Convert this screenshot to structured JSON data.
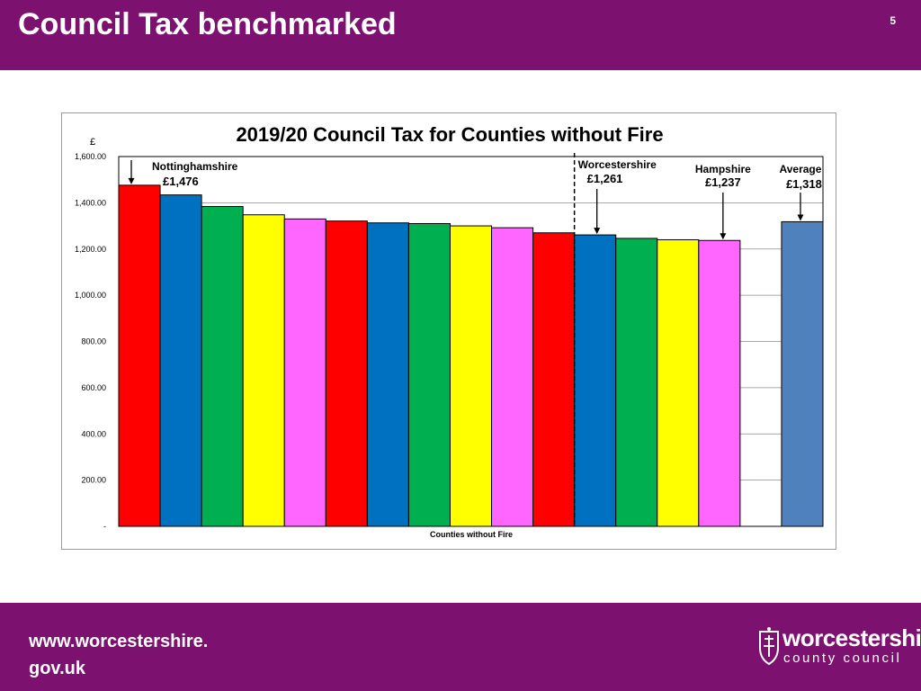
{
  "header": {
    "title": "Council Tax benchmarked",
    "slide_number": "5"
  },
  "footer": {
    "url_line1": "www.worcestershire.",
    "url_line2": "gov.uk",
    "logo_line1": "worcestershire",
    "logo_line2": "county council"
  },
  "colors": {
    "brand_purple": "#7d1170",
    "average_bar": "#4f81bd"
  },
  "chart_data": {
    "type": "bar",
    "title": "2019/20 Council Tax for Counties without Fire",
    "ylabel": "£",
    "xlabel": "Counties without Fire",
    "ylim": [
      0,
      1600
    ],
    "yticks": [
      {
        "value": 0,
        "label": "-"
      },
      {
        "value": 200,
        "label": "200.00"
      },
      {
        "value": 400,
        "label": "400.00"
      },
      {
        "value": 600,
        "label": "600.00"
      },
      {
        "value": 800,
        "label": "800.00"
      },
      {
        "value": 1000,
        "label": "1,000.00"
      },
      {
        "value": 1200,
        "label": "1,200.00"
      },
      {
        "value": 1400,
        "label": "1,400.00"
      },
      {
        "value": 1600,
        "label": "1,600.00"
      }
    ],
    "grid": true,
    "values": [
      1476,
      1434,
      1384,
      1348,
      1330,
      1321,
      1313,
      1310,
      1300,
      1292,
      1270,
      1261,
      1246,
      1240,
      1237,
      null,
      1318
    ],
    "colors": [
      "#ff0000",
      "#0070c0",
      "#00b050",
      "#ffff00",
      "#ff66ff",
      "#ff0000",
      "#0070c0",
      "#00b050",
      "#ffff00",
      "#ff66ff",
      "#ff0000",
      "#0070c0",
      "#00b050",
      "#ffff00",
      "#ff66ff",
      "#ffffff",
      "#4f81bd"
    ],
    "divider_after_index": 10,
    "annotations": [
      {
        "bar": 0,
        "name": "Nottinghamshire",
        "value": "£1,476"
      },
      {
        "bar": 11,
        "name": "Worcestershire",
        "value": "£1,261"
      },
      {
        "bar": 14,
        "name": "Hampshire",
        "value": "£1,237"
      },
      {
        "bar": 16,
        "name": "Average",
        "value": "£1,318"
      }
    ]
  }
}
